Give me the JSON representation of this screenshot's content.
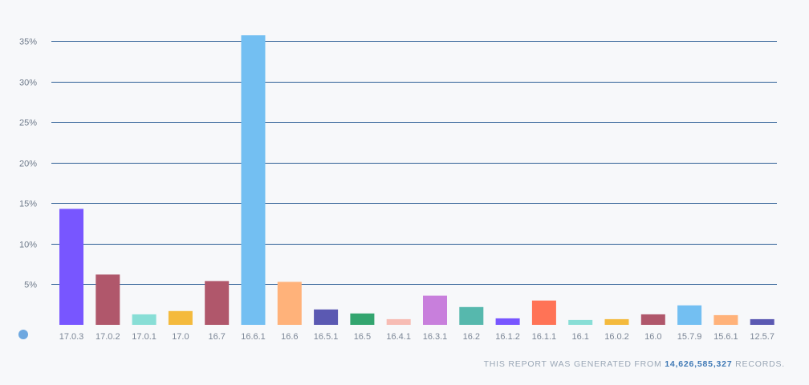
{
  "chart_data": {
    "type": "bar",
    "categories": [
      "17.0.3",
      "17.0.2",
      "17.0.1",
      "17.0",
      "16.7",
      "16.6.1",
      "16.6",
      "16.5.1",
      "16.5",
      "16.4.1",
      "16.3.1",
      "16.2",
      "16.1.2",
      "16.1.1",
      "16.1",
      "16.0.2",
      "16.0",
      "15.7.9",
      "15.6.1",
      "12.5.7"
    ],
    "values": [
      14.3,
      6.2,
      1.3,
      1.7,
      5.4,
      35.7,
      5.3,
      1.9,
      1.4,
      0.7,
      3.6,
      2.2,
      0.8,
      3.0,
      0.6,
      0.7,
      1.3,
      2.4,
      1.2,
      0.7
    ],
    "colors": [
      "#7856ff",
      "#b0576b",
      "#88ded6",
      "#f4ba3d",
      "#b0576b",
      "#73bff2",
      "#ffb27a",
      "#5b59b2",
      "#33a56f",
      "#f7bcb4",
      "#c87fdc",
      "#56b8ad",
      "#7856ff",
      "#ff7356",
      "#88ded6",
      "#f4ba3d",
      "#b0576b",
      "#73bff2",
      "#ffb27a",
      "#5b59b2"
    ],
    "yticks": [
      5,
      10,
      15,
      20,
      25,
      30,
      35
    ],
    "ytick_labels": [
      "5%",
      "10%",
      "15%",
      "20%",
      "25%",
      "30%",
      "35%"
    ],
    "ylim": [
      0,
      35.7
    ],
    "grid": true,
    "title": "",
    "xlabel": "",
    "ylabel": ""
  },
  "legend_marker": {
    "color": "#6ea8e0"
  },
  "footer": {
    "prefix": "THIS REPORT WAS GENERATED FROM",
    "count": "14,626,585,327",
    "suffix": "RECORDS."
  }
}
